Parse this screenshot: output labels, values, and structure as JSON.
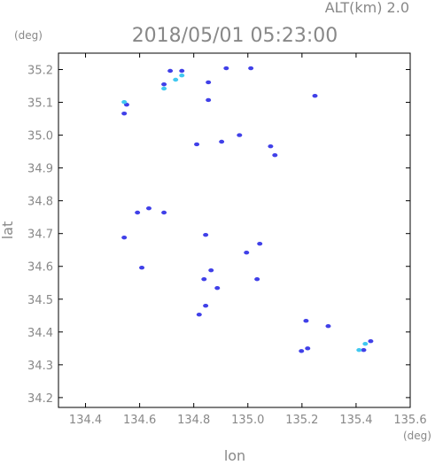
{
  "chart_data": {
    "type": "scatter",
    "title": "2018/05/01 05:23:00",
    "subtitle": "ALT(km) 2.0",
    "x_label": "lon",
    "y_label": "lat",
    "x_unit": "(deg)",
    "y_unit": "(deg)",
    "xlim": [
      134.3,
      135.6
    ],
    "ylim": [
      34.17,
      35.25
    ],
    "xticks": [
      134.4,
      134.6,
      134.8,
      {
        "value": 135,
        "label": "135.0"
      },
      135.2,
      135.4,
      135.6
    ],
    "yticks": [
      34.2,
      34.3,
      34.4,
      34.5,
      34.6,
      34.7,
      34.8,
      34.9,
      {
        "value": 35,
        "label": "35.0"
      },
      35.1,
      35.2
    ],
    "series": [
      {
        "color": "#4040e8",
        "x": [
          134.543,
          134.552,
          134.69,
          134.713,
          134.756,
          134.854,
          134.854,
          134.92,
          135.011,
          134.969,
          134.811,
          134.903,
          135.084,
          135.1,
          135.248,
          134.592,
          134.634,
          134.69,
          134.543,
          134.844,
          135.044,
          134.995,
          134.608,
          134.864,
          134.838,
          135.034,
          134.887,
          134.844,
          134.82,
          135.215,
          135.297,
          135.198,
          135.221,
          135.428,
          135.454
        ],
        "values": [
          35.066,
          35.093,
          35.155,
          35.196,
          35.196,
          35.161,
          35.107,
          35.204,
          35.204,
          35.0,
          34.972,
          34.98,
          34.966,
          34.939,
          35.12,
          34.764,
          34.777,
          34.764,
          34.688,
          34.696,
          34.669,
          34.642,
          34.596,
          34.588,
          34.561,
          34.561,
          34.534,
          34.48,
          34.453,
          34.434,
          34.418,
          34.342,
          34.35,
          34.345,
          34.372
        ]
      },
      {
        "color": "#40c8f0",
        "x": [
          134.543,
          134.69,
          134.733,
          134.756,
          135.411,
          135.434
        ],
        "values": [
          35.101,
          35.142,
          35.169,
          35.182,
          34.345,
          34.364
        ]
      }
    ]
  }
}
